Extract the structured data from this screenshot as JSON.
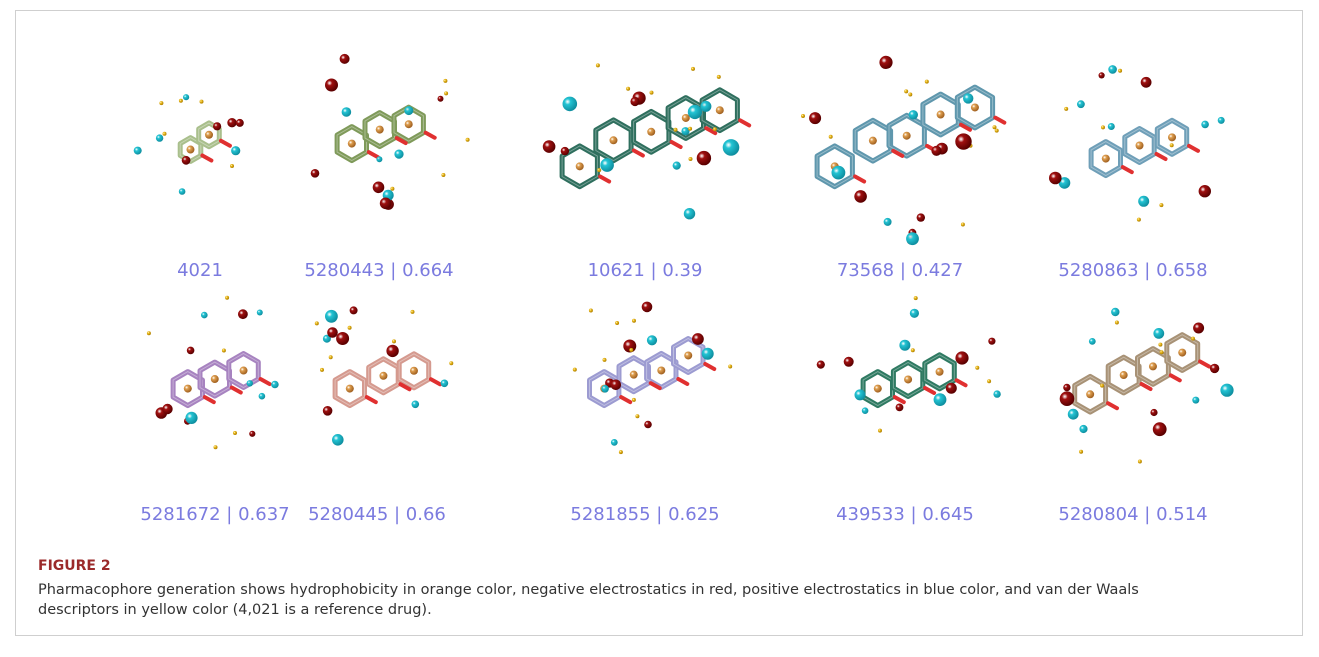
{
  "figure": {
    "panels": [
      {
        "label": "4021"
      },
      {
        "label": "5280443 | 0.664"
      },
      {
        "label": "10621 | 0.39"
      },
      {
        "label": "73568 | 0.427"
      },
      {
        "label": "5280863 | 0.658"
      },
      {
        "label": "5281672 | 0.637"
      },
      {
        "label": "5280445 | 0.66"
      },
      {
        "label": "5281855 | 0.625"
      },
      {
        "label": "439533 | 0.645"
      },
      {
        "label": "5280804 | 0.514"
      }
    ],
    "label": "FIGURE 2",
    "caption": "Pharmacophore generation shows hydrophobicity in orange color, negative electrostatics in red, positive electrostatics in blue color, and van der Waals descriptors in yellow color (4,021 is a reference drug)."
  }
}
